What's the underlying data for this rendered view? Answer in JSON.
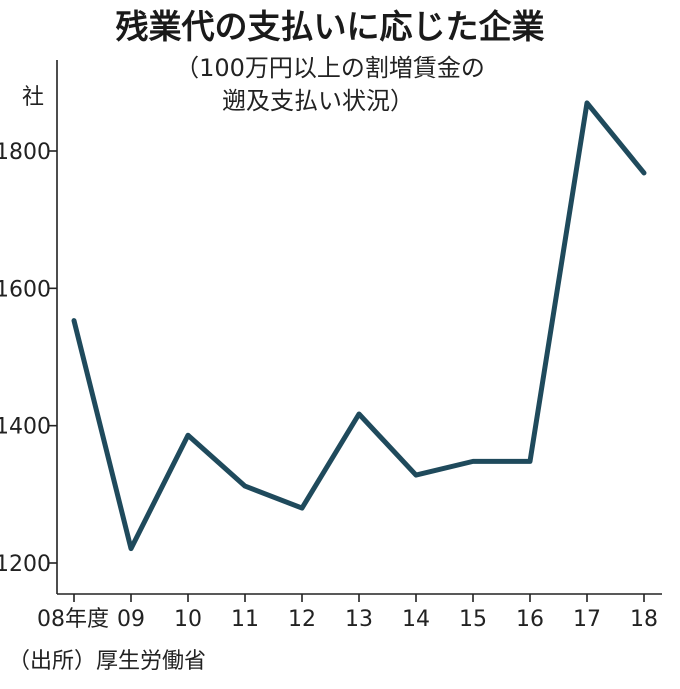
{
  "chart_data": {
    "type": "line",
    "title": "残業代の支払いに応じた企業",
    "subtitle_lines": [
      "（100万円以上の割増賃金の",
      "遡及支払い状況）"
    ],
    "unit": "社",
    "x": [
      "08年度",
      "09",
      "10",
      "11",
      "12",
      "13",
      "14",
      "15",
      "16",
      "17",
      "18"
    ],
    "series": [
      {
        "values": [
          1553,
          1221,
          1386,
          1312,
          1280,
          1417,
          1328,
          1348,
          1348,
          1870,
          1768
        ]
      }
    ],
    "yticks": [
      1200,
      1400,
      1600,
      1800
    ],
    "ylim": [
      1160,
      1930
    ],
    "grid": false,
    "line_color": "#1f4a5c",
    "source": "（出所）厚生労働省"
  }
}
